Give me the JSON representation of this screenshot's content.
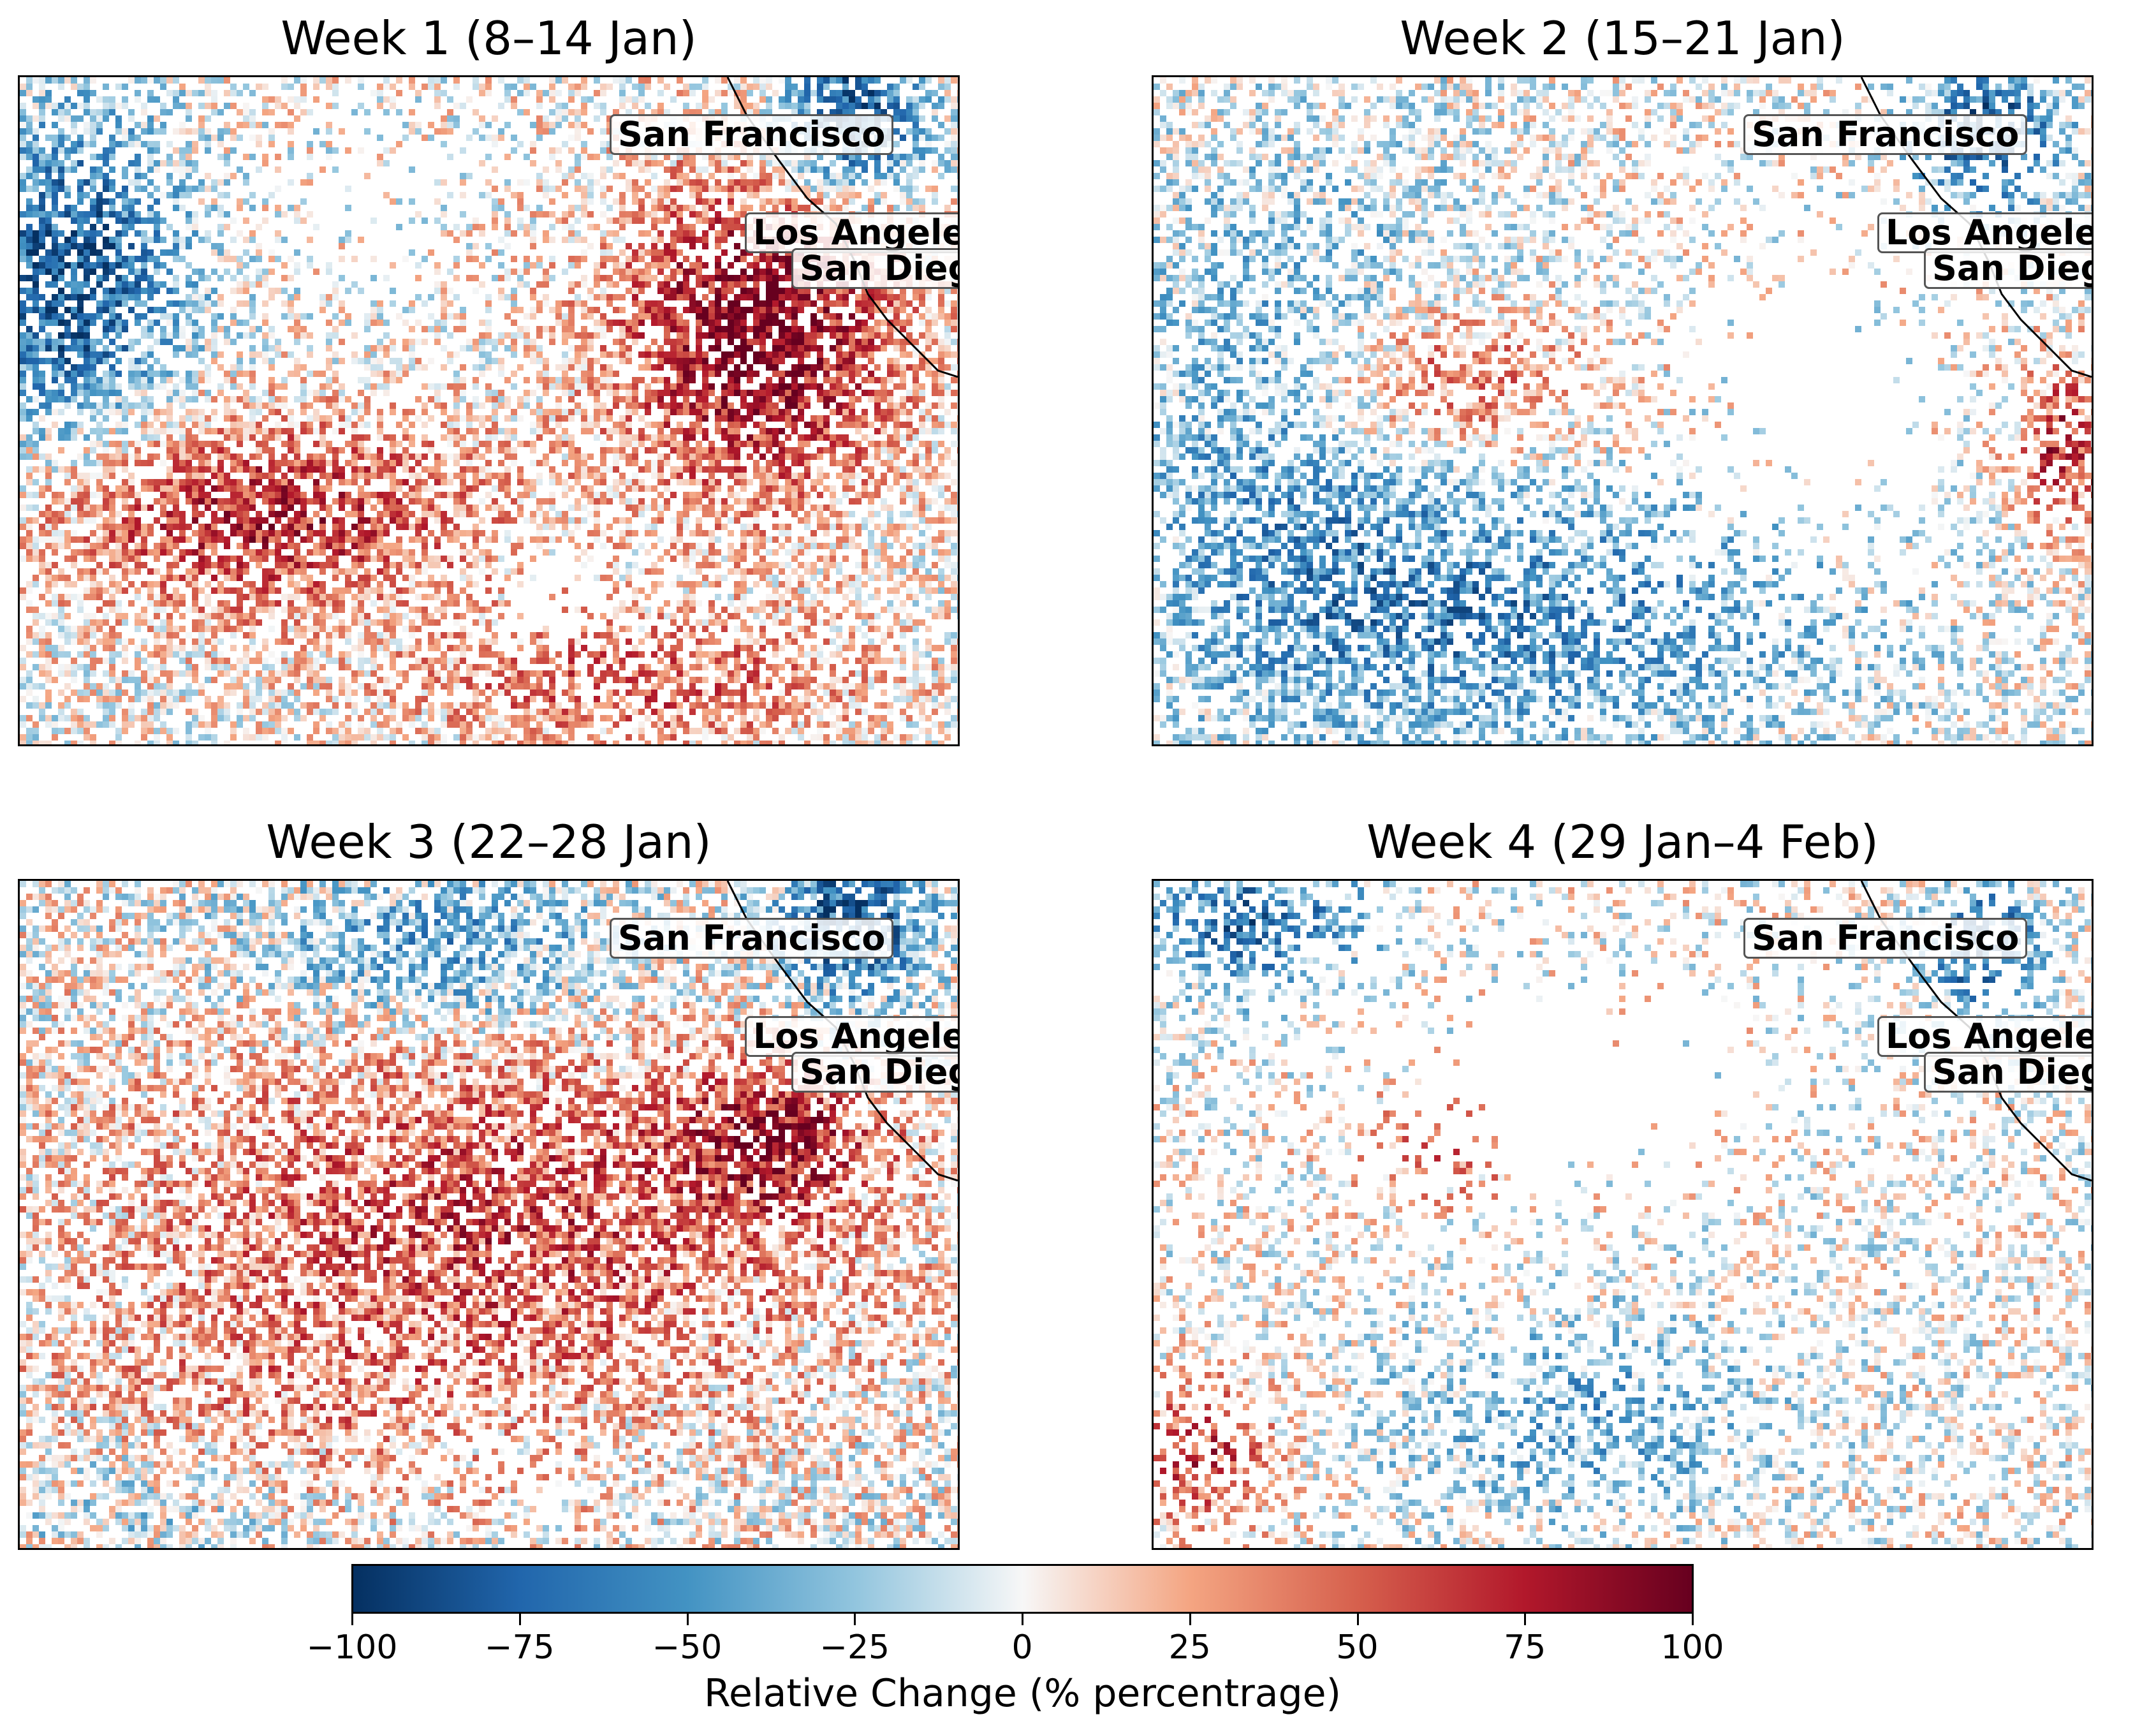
{
  "panels": [
    {
      "title": "Week 1 (8–14 Jan)",
      "pattern": "mostly_increase"
    },
    {
      "title": "Week 2 (15–21 Jan)",
      "pattern": "mostly_decrease"
    },
    {
      "title": "Week 3 (22–28 Jan)",
      "pattern": "mixed_increase"
    },
    {
      "title": "Week 4 (29 Jan–4 Feb)",
      "pattern": "sparse"
    }
  ],
  "cities": [
    "San Francisco",
    "Los Angeles",
    "San Diego"
  ],
  "colorbar": {
    "label": "Relative Change (% percentrage)",
    "min": -100,
    "max": 100,
    "ticks": [
      "−100",
      "−75",
      "−50",
      "−25",
      "0",
      "25",
      "50",
      "75",
      "100"
    ],
    "colormap": "RdBu_r",
    "colors": [
      "#053061",
      "#2166ac",
      "#4393c3",
      "#92c5de",
      "#f7f7f7",
      "#f4a582",
      "#d6604d",
      "#b2182b",
      "#67001f"
    ]
  }
}
